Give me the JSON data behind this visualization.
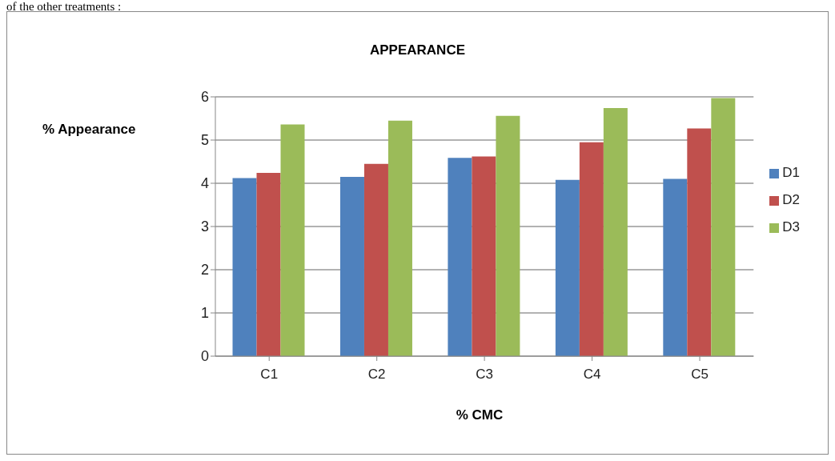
{
  "chart_data": {
    "type": "bar",
    "title": "APPEARANCE",
    "xlabel": "% CMC",
    "ylabel": "% Appearance",
    "annotations": [
      "of the other treatments :"
    ],
    "categories": [
      "C1",
      "C2",
      "C3",
      "C4",
      "C5"
    ],
    "series": [
      {
        "name": "D1",
        "color": "#4f81bd",
        "values": [
          4.12,
          4.15,
          4.59,
          4.08,
          4.1
        ]
      },
      {
        "name": "D2",
        "color": "#c0504d",
        "values": [
          4.24,
          4.45,
          4.62,
          4.95,
          5.27
        ]
      },
      {
        "name": "D3",
        "color": "#9bbb59",
        "values": [
          5.36,
          5.45,
          5.56,
          5.74,
          5.97
        ]
      }
    ],
    "ylim": [
      0,
      6
    ],
    "yticks": [
      0,
      1,
      2,
      3,
      4,
      5,
      6
    ],
    "grid": "y",
    "legend": "right"
  }
}
